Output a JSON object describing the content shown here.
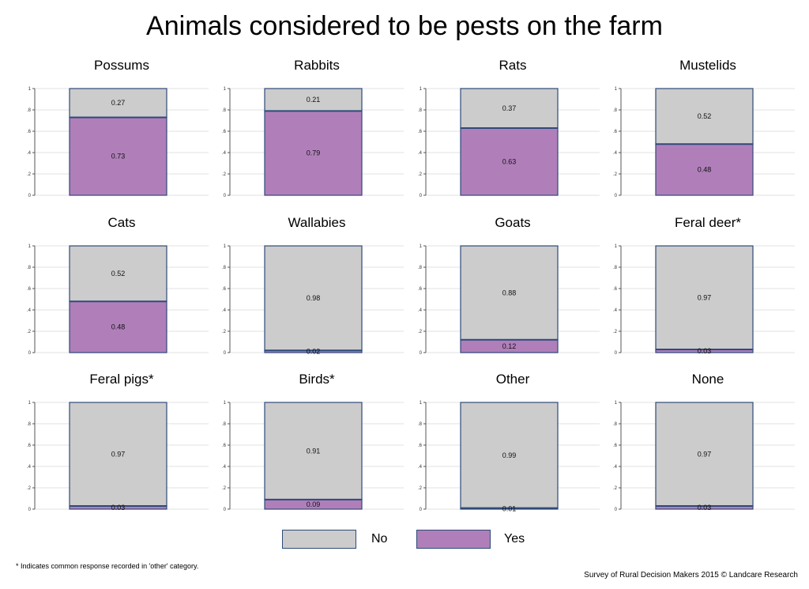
{
  "title": "Animals considered to be pests on the farm",
  "colors": {
    "no": "#cccccc",
    "yes": "#b07fba",
    "outline": "#2e4a7a",
    "grid": "#e2e2e2"
  },
  "legend": {
    "no_label": "No",
    "yes_label": "Yes"
  },
  "footnote": "* Indicates common response recorded in 'other' category.",
  "source": "Survey of Rural Decision Makers 2015 © Landcare Research",
  "chart_data": [
    {
      "type": "bar",
      "title": "Possums",
      "categories": [
        "Yes",
        "No"
      ],
      "values": [
        0.73,
        0.27
      ],
      "value_labels": [
        "0.73",
        "0.27"
      ],
      "ylim": [
        0,
        1
      ],
      "yticks": [
        "0",
        ".2",
        ".4",
        ".6",
        ".8",
        "1"
      ],
      "grid": true
    },
    {
      "type": "bar",
      "title": "Rabbits",
      "categories": [
        "Yes",
        "No"
      ],
      "values": [
        0.79,
        0.21
      ],
      "value_labels": [
        "0.79",
        "0.21"
      ],
      "ylim": [
        0,
        1
      ],
      "yticks": [
        "0",
        ".2",
        ".4",
        ".6",
        ".8",
        "1"
      ],
      "grid": true
    },
    {
      "type": "bar",
      "title": "Rats",
      "categories": [
        "Yes",
        "No"
      ],
      "values": [
        0.63,
        0.37
      ],
      "value_labels": [
        "0.63",
        "0.37"
      ],
      "ylim": [
        0,
        1
      ],
      "yticks": [
        "0",
        ".2",
        ".4",
        ".6",
        ".8",
        "1"
      ],
      "grid": true
    },
    {
      "type": "bar",
      "title": "Mustelids",
      "categories": [
        "Yes",
        "No"
      ],
      "values": [
        0.48,
        0.52
      ],
      "value_labels": [
        "0.48",
        "0.52"
      ],
      "ylim": [
        0,
        1
      ],
      "yticks": [
        "0",
        ".2",
        ".4",
        ".6",
        ".8",
        "1"
      ],
      "grid": true
    },
    {
      "type": "bar",
      "title": "Cats",
      "categories": [
        "Yes",
        "No"
      ],
      "values": [
        0.48,
        0.52
      ],
      "value_labels": [
        "0.48",
        "0.52"
      ],
      "ylim": [
        0,
        1
      ],
      "yticks": [
        "0",
        ".2",
        ".4",
        ".6",
        ".8",
        "1"
      ],
      "grid": true
    },
    {
      "type": "bar",
      "title": "Wallabies",
      "categories": [
        "Yes",
        "No"
      ],
      "values": [
        0.02,
        0.98
      ],
      "value_labels": [
        "0.02",
        "0.98"
      ],
      "ylim": [
        0,
        1
      ],
      "yticks": [
        "0",
        ".2",
        ".4",
        ".6",
        ".8",
        "1"
      ],
      "grid": true
    },
    {
      "type": "bar",
      "title": "Goats",
      "categories": [
        "Yes",
        "No"
      ],
      "values": [
        0.12,
        0.88
      ],
      "value_labels": [
        "0.12",
        "0.88"
      ],
      "ylim": [
        0,
        1
      ],
      "yticks": [
        "0",
        ".2",
        ".4",
        ".6",
        ".8",
        "1"
      ],
      "grid": true
    },
    {
      "type": "bar",
      "title": "Feral deer*",
      "categories": [
        "Yes",
        "No"
      ],
      "values": [
        0.03,
        0.97
      ],
      "value_labels": [
        "0.03",
        "0.97"
      ],
      "ylim": [
        0,
        1
      ],
      "yticks": [
        "0",
        ".2",
        ".4",
        ".6",
        ".8",
        "1"
      ],
      "grid": true
    },
    {
      "type": "bar",
      "title": "Feral pigs*",
      "categories": [
        "Yes",
        "No"
      ],
      "values": [
        0.03,
        0.97
      ],
      "value_labels": [
        "0.03",
        "0.97"
      ],
      "ylim": [
        0,
        1
      ],
      "yticks": [
        "0",
        ".2",
        ".4",
        ".6",
        ".8",
        "1"
      ],
      "grid": true
    },
    {
      "type": "bar",
      "title": "Birds*",
      "categories": [
        "Yes",
        "No"
      ],
      "values": [
        0.09,
        0.91
      ],
      "value_labels": [
        "0.09",
        "0.91"
      ],
      "ylim": [
        0,
        1
      ],
      "yticks": [
        "0",
        ".2",
        ".4",
        ".6",
        ".8",
        "1"
      ],
      "grid": true
    },
    {
      "type": "bar",
      "title": "Other",
      "categories": [
        "Yes",
        "No"
      ],
      "values": [
        0.01,
        0.99
      ],
      "value_labels": [
        "0.01",
        "0.99"
      ],
      "ylim": [
        0,
        1
      ],
      "yticks": [
        "0",
        ".2",
        ".4",
        ".6",
        ".8",
        "1"
      ],
      "grid": true
    },
    {
      "type": "bar",
      "title": "None",
      "categories": [
        "Yes",
        "No"
      ],
      "values": [
        0.03,
        0.97
      ],
      "value_labels": [
        "0.03",
        "0.97"
      ],
      "ylim": [
        0,
        1
      ],
      "yticks": [
        "0",
        ".2",
        ".4",
        ".6",
        ".8",
        "1"
      ],
      "grid": true
    }
  ]
}
